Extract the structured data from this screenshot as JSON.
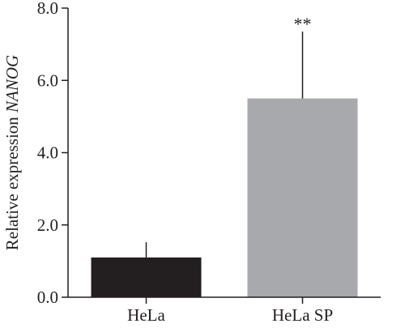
{
  "chart_data": {
    "type": "bar",
    "categories": [
      "HeLa",
      "HeLa SP"
    ],
    "values": [
      1.1,
      5.5
    ],
    "errors": [
      0.42,
      1.85
    ],
    "bar_colors": [
      "#231f20",
      "#a7a9ac"
    ],
    "annotations": [
      "",
      "**"
    ],
    "ylabel_prefix": "Relative expression ",
    "ylabel_italic": "NANOG",
    "xlabel": "",
    "ylim": [
      0,
      8
    ],
    "yticks": [
      0,
      2,
      4,
      6,
      8
    ],
    "ytick_labels": [
      "0.0",
      "2.0",
      "4.0",
      "6.0",
      "8.0"
    ],
    "grid": false,
    "legend": "none"
  }
}
